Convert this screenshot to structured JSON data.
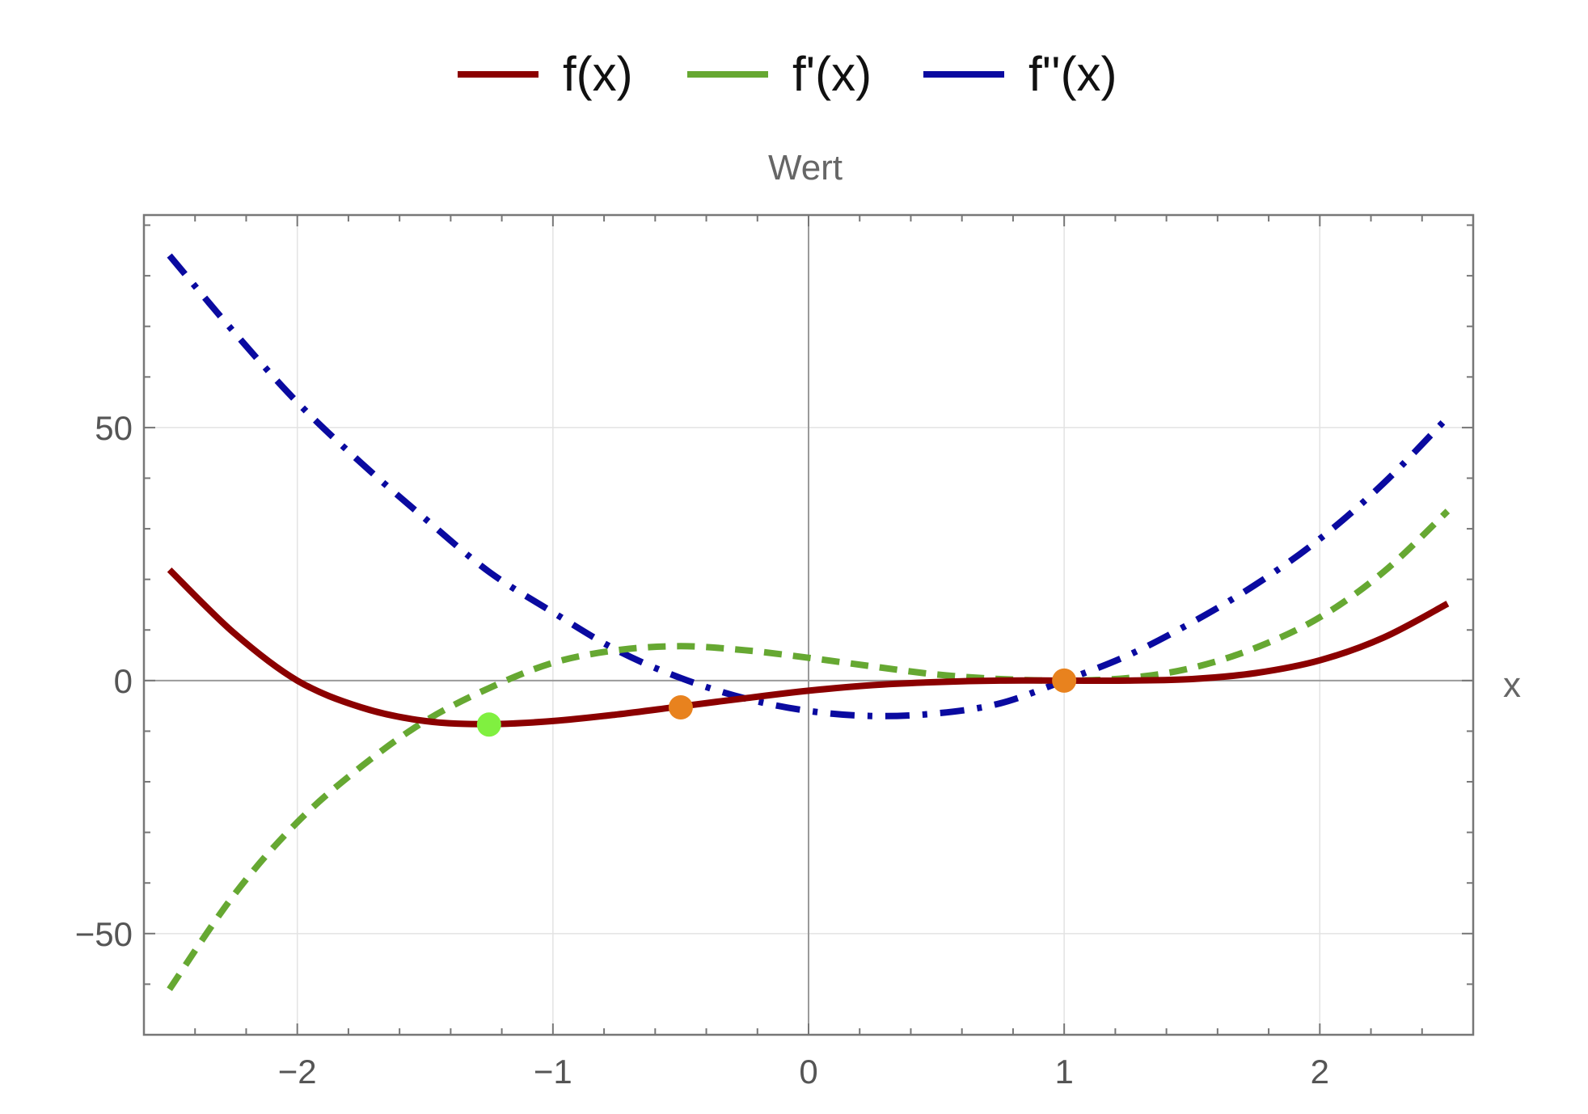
{
  "chart_data": {
    "type": "line",
    "title": "",
    "subtitle": "Wert",
    "xlabel": "x",
    "ylabel": "",
    "xlim": [
      -2.6,
      2.6
    ],
    "ylim": [
      -70,
      92
    ],
    "grid": true,
    "legend_position": "top-center",
    "x_ticks": [
      {
        "value": -2,
        "label": "−2"
      },
      {
        "value": -1,
        "label": "−1"
      },
      {
        "value": 0,
        "label": "0"
      },
      {
        "value": 1,
        "label": "1"
      },
      {
        "value": 2,
        "label": "2"
      }
    ],
    "y_ticks": [
      {
        "value": -50,
        "label": "−50"
      },
      {
        "value": 0,
        "label": "0"
      },
      {
        "value": 50,
        "label": "50"
      }
    ],
    "series": [
      {
        "name": "f(x)",
        "style": "solid",
        "color": "#8b0000",
        "x": [
          -2.5,
          -2.25,
          -2.0,
          -1.75,
          -1.5,
          -1.25,
          -1.0,
          -0.75,
          -0.5,
          -0.25,
          0.0,
          0.25,
          0.5,
          0.75,
          1.0,
          1.25,
          1.5,
          1.75,
          2.0,
          2.25,
          2.5
        ],
        "y": [
          21.9,
          9.5,
          0.0,
          -5.3,
          -8.0,
          -8.6,
          -8.0,
          -6.7,
          -5.1,
          -3.5,
          -2.0,
          -0.9,
          -0.3,
          0.0,
          0.0,
          0.0,
          0.3,
          1.5,
          4.0,
          8.5,
          15.2
        ]
      },
      {
        "name": "f'(x)",
        "style": "dashed",
        "color": "#66a832",
        "x": [
          -2.5,
          -2.25,
          -2.0,
          -1.75,
          -1.5,
          -1.25,
          -1.0,
          -0.75,
          -0.5,
          -0.25,
          0.0,
          0.25,
          0.5,
          0.75,
          1.0,
          1.25,
          1.5,
          1.75,
          2.0,
          2.25,
          2.5
        ],
        "y": [
          -61.0,
          -42.5,
          -28.0,
          -17.0,
          -8.0,
          -1.5,
          3.5,
          6.0,
          6.8,
          6.0,
          4.5,
          2.8,
          1.2,
          0.3,
          0.0,
          0.5,
          2.5,
          6.5,
          12.5,
          21.5,
          33.5
        ]
      },
      {
        "name": "f''(x)",
        "style": "dashdot",
        "color": "#0a0aa0",
        "x": [
          -2.5,
          -2.25,
          -2.0,
          -1.75,
          -1.5,
          -1.25,
          -1.0,
          -0.75,
          -0.5,
          -0.25,
          0.0,
          0.25,
          0.5,
          0.75,
          1.0,
          1.25,
          1.5,
          1.75,
          2.0,
          2.25,
          2.5
        ],
        "y": [
          84.0,
          69.0,
          55.0,
          43.0,
          32.0,
          21.5,
          13.5,
          6.0,
          0.5,
          -3.5,
          -6.0,
          -7.0,
          -6.5,
          -4.5,
          0.0,
          5.0,
          11.5,
          19.0,
          28.0,
          39.0,
          52.0
        ]
      }
    ],
    "points": [
      {
        "name": "minimum-point",
        "x": -1.25,
        "y": -8.7,
        "color": "#80f040"
      },
      {
        "name": "inflection-point-1",
        "x": -0.5,
        "y": -5.3,
        "color": "#e8821e"
      },
      {
        "name": "inflection-point-2",
        "x": 1.0,
        "y": 0.0,
        "color": "#e8821e"
      }
    ]
  }
}
